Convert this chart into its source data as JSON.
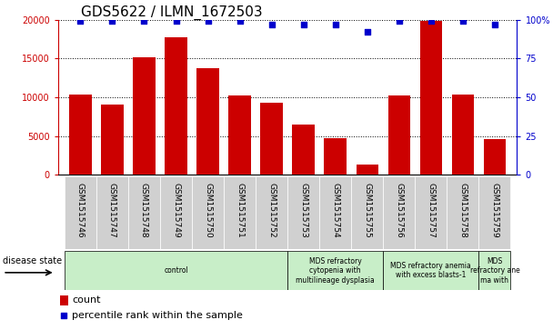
{
  "title": "GDS5622 / ILMN_1672503",
  "samples": [
    "GSM1515746",
    "GSM1515747",
    "GSM1515748",
    "GSM1515749",
    "GSM1515750",
    "GSM1515751",
    "GSM1515752",
    "GSM1515753",
    "GSM1515754",
    "GSM1515755",
    "GSM1515756",
    "GSM1515757",
    "GSM1515758",
    "GSM1515759"
  ],
  "counts": [
    10400,
    9100,
    15200,
    17700,
    13800,
    10200,
    9300,
    6500,
    4700,
    1300,
    10200,
    19900,
    10400,
    4600
  ],
  "percentile_ranks": [
    99,
    99,
    99,
    99,
    99,
    99,
    97,
    97,
    97,
    92,
    99,
    99,
    99,
    97
  ],
  "ylim_left": [
    0,
    20000
  ],
  "ylim_right": [
    0,
    100
  ],
  "yticks_left": [
    0,
    5000,
    10000,
    15000,
    20000
  ],
  "yticks_right": [
    0,
    25,
    50,
    75,
    100
  ],
  "ytick_labels_right": [
    "0",
    "25",
    "50",
    "75",
    "100%"
  ],
  "bar_color": "#cc0000",
  "dot_color": "#0000cc",
  "tick_bg_color": "#d0d0d0",
  "disease_state_label": "disease state",
  "disease_groups": [
    {
      "label": "control",
      "start": 0,
      "end": 6,
      "color": "#c8eec8"
    },
    {
      "label": "MDS refractory\ncytopenia with\nmultilineage dysplasia",
      "start": 7,
      "end": 9,
      "color": "#c8eec8"
    },
    {
      "label": "MDS refractory anemia\nwith excess blasts-1",
      "start": 10,
      "end": 12,
      "color": "#c8eec8"
    },
    {
      "label": "MDS\nrefractory ane\nma with",
      "start": 13,
      "end": 13,
      "color": "#c8eec8"
    }
  ],
  "legend_count_label": "count",
  "legend_pct_label": "percentile rank within the sample",
  "axis_color_left": "#cc0000",
  "axis_color_right": "#0000cc",
  "title_fontsize": 11,
  "tick_fontsize": 7,
  "legend_fontsize": 8
}
